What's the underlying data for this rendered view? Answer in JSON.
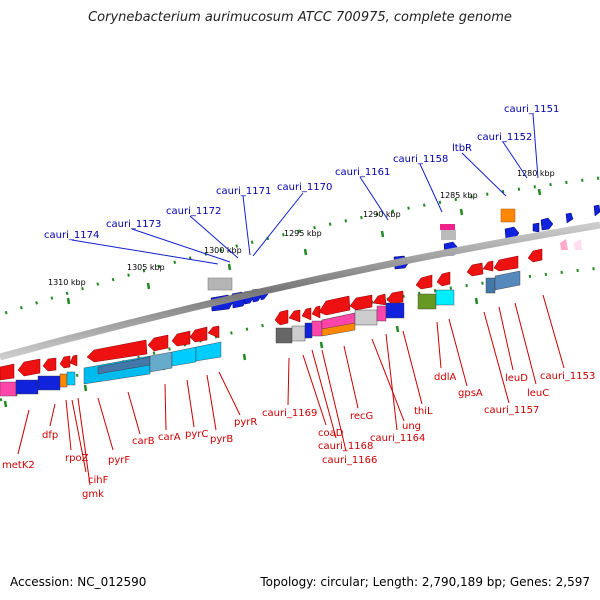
{
  "title": "Corynebacterium aurimucosum ATCC 700975, complete genome",
  "footer": {
    "accession": "Accession: NC_012590",
    "stats": "Topology: circular; Length: 2,790,189 bp; Genes: 2,597"
  },
  "scale_labels": [
    "1280 kbp",
    "1285 kbp",
    "1290 kbp",
    "1295 kbp",
    "1300 kbp",
    "1305 kbp",
    "1310 kbp"
  ],
  "top_labels": [
    "cauri_1151",
    "cauri_1152",
    "ltbR",
    "cauri_1158",
    "cauri_1161",
    "cauri_1170",
    "cauri_1171",
    "cauri_1172",
    "cauri_1173",
    "cauri_1174"
  ],
  "bottom_labels": [
    "metK2",
    "dfp",
    "rpoZ",
    "cihF",
    "gmk",
    "pyrF",
    "carB",
    "carA",
    "pyrC",
    "pyrB",
    "pyrR",
    "cauri_1169",
    "coaD",
    "cauri_1168",
    "cauri_1166",
    "recG",
    "ung",
    "cauri_1164",
    "thiL",
    "ddlA",
    "gpsA",
    "cauri_1157",
    "leuD",
    "leuC",
    "cauri_1153"
  ],
  "colors": {
    "reverse_gene": "#ee1111",
    "forward_gene": "#1122dd",
    "backbone": "#888888",
    "tick": "#228822",
    "label_top": "#0000aa",
    "label_bottom": "#cc0000"
  }
}
